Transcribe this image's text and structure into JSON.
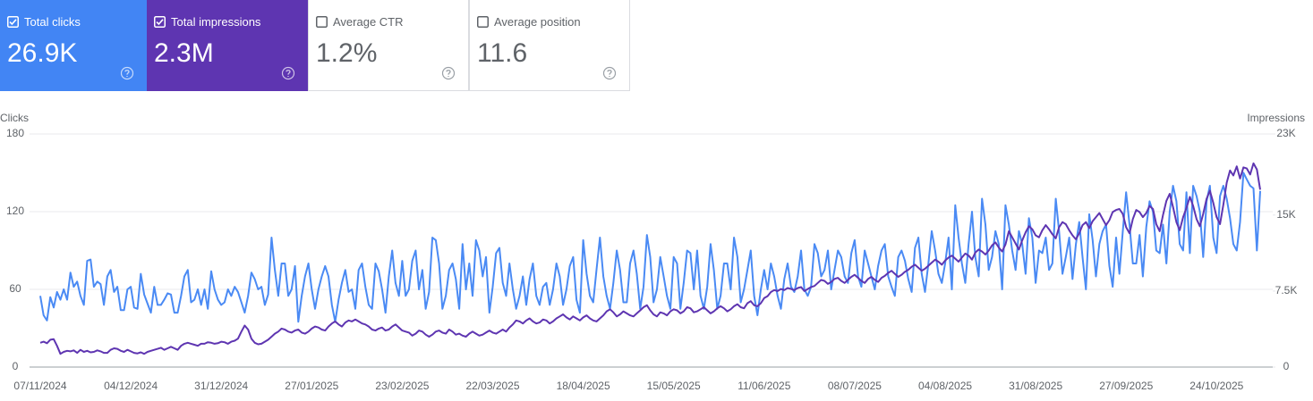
{
  "metrics": [
    {
      "label": "Total clicks",
      "value": "26.9K",
      "checked": true,
      "color": "#4285f4"
    },
    {
      "label": "Total impressions",
      "value": "2.3M",
      "checked": true,
      "color": "#5e35b1"
    },
    {
      "label": "Average CTR",
      "value": "1.2%",
      "checked": false,
      "color": "#ffffff"
    },
    {
      "label": "Average position",
      "value": "11.6",
      "checked": false,
      "color": "#ffffff"
    }
  ],
  "chart_data": {
    "type": "line",
    "ylabel": "Clicks",
    "y2label": "Impressions",
    "ylim": [
      0,
      180
    ],
    "yticks": [
      0,
      60,
      120,
      180
    ],
    "y2lim": [
      0,
      23000
    ],
    "y2ticks": [
      0,
      {
        "value": 7500,
        "label": "7.5K"
      },
      {
        "value": 15000,
        "label": "15K"
      },
      {
        "value": 23000,
        "label": "23K"
      }
    ],
    "grid": true,
    "categories": [
      "07/11/2024",
      null,
      null,
      null,
      null,
      null,
      null,
      null,
      null,
      null,
      null,
      null,
      null,
      null,
      null,
      null,
      null,
      null,
      null,
      null,
      null,
      null,
      null,
      null,
      null,
      null,
      null,
      "04/12/2024",
      null,
      null,
      null,
      null,
      null,
      null,
      null,
      null,
      null,
      null,
      null,
      null,
      null,
      null,
      null,
      null,
      null,
      null,
      null,
      null,
      null,
      null,
      null,
      null,
      null,
      null,
      "31/12/2024",
      null,
      null,
      null,
      null,
      null,
      null,
      null,
      null,
      null,
      null,
      null,
      null,
      null,
      null,
      null,
      null,
      null,
      null,
      null,
      null,
      null,
      null,
      null,
      null,
      null,
      null,
      "27/01/2025",
      null,
      null,
      null,
      null,
      null,
      null,
      null,
      null,
      null,
      null,
      null,
      null,
      null,
      null,
      null,
      null,
      null,
      null,
      null,
      null,
      null,
      null,
      null,
      null,
      null,
      null,
      "23/02/2025",
      null,
      null,
      null,
      null,
      null,
      null,
      null,
      null,
      null,
      null,
      null,
      null,
      null,
      null,
      null,
      null,
      null,
      null,
      null,
      null,
      null,
      null,
      null,
      null,
      null,
      null,
      "22/03/2025",
      null,
      null,
      null,
      null,
      null,
      null,
      null,
      null,
      null,
      null,
      null,
      null,
      null,
      null,
      null,
      null,
      null,
      null,
      null,
      null,
      null,
      null,
      null,
      null,
      null,
      null,
      "18/04/2025",
      null,
      null,
      null,
      null,
      null,
      null,
      null,
      null,
      null,
      null,
      null,
      null,
      null,
      null,
      null,
      null,
      null,
      null,
      null,
      null,
      null,
      null,
      null,
      null,
      null,
      null,
      "15/05/2025",
      null,
      null,
      null,
      null,
      null,
      null,
      null,
      null,
      null,
      null,
      null,
      null,
      null,
      null,
      null,
      null,
      null,
      null,
      null,
      null,
      null,
      null,
      null,
      null,
      null,
      null,
      "11/06/2025",
      null,
      null,
      null,
      null,
      null,
      null,
      null,
      null,
      null,
      null,
      null,
      null,
      null,
      null,
      null,
      null,
      null,
      null,
      null,
      null,
      null,
      null,
      null,
      null,
      null,
      null,
      "08/07/2025",
      null,
      null,
      null,
      null,
      null,
      null,
      null,
      null,
      null,
      null,
      null,
      null,
      null,
      null,
      null,
      null,
      null,
      null,
      null,
      null,
      null,
      null,
      null,
      null,
      null,
      null,
      "04/08/2025",
      null,
      null,
      null,
      null,
      null,
      null,
      null,
      null,
      null,
      null,
      null,
      null,
      null,
      null,
      null,
      null,
      null,
      null,
      null,
      null,
      null,
      null,
      null,
      null,
      null,
      null,
      "31/08/2025",
      null,
      null,
      null,
      null,
      null,
      null,
      null,
      null,
      null,
      null,
      null,
      null,
      null,
      null,
      null,
      null,
      null,
      null,
      null,
      null,
      null,
      null,
      null,
      null,
      null,
      null,
      "27/09/2025",
      null,
      null,
      null,
      null,
      null,
      null,
      null,
      null,
      null,
      null,
      null,
      null,
      null,
      null,
      null,
      null,
      null,
      null,
      null,
      null,
      null,
      null,
      null,
      null,
      null,
      null,
      "24/10/2025",
      null,
      null,
      null,
      null,
      null,
      null,
      null,
      null,
      null,
      null,
      null,
      null,
      null
    ],
    "series": [
      {
        "color": "#4a8af4",
        "axis": "y",
        "values": [
          55,
          40,
          36,
          54,
          46,
          58,
          52,
          60,
          52,
          73,
          62,
          66,
          55,
          48,
          82,
          83,
          62,
          66,
          64,
          48,
          70,
          75,
          58,
          62,
          44,
          44,
          60,
          62,
          46,
          45,
          72,
          56,
          49,
          42,
          62,
          48,
          48,
          52,
          57,
          56,
          42,
          42,
          55,
          70,
          75,
          50,
          52,
          60,
          48,
          60,
          45,
          74,
          60,
          52,
          48,
          50,
          60,
          55,
          62,
          58,
          50,
          42,
          55,
          73,
          68,
          60,
          62,
          48,
          56,
          100,
          75,
          55,
          80,
          80,
          55,
          60,
          78,
          35,
          55,
          70,
          80,
          60,
          45,
          60,
          70,
          78,
          70,
          48,
          35,
          52,
          65,
          75,
          58,
          60,
          45,
          75,
          80,
          62,
          48,
          45,
          80,
          74,
          60,
          42,
          70,
          90,
          65,
          55,
          82,
          55,
          60,
          82,
          90,
          60,
          75,
          45,
          58,
          100,
          98,
          80,
          45,
          55,
          75,
          80,
          68,
          45,
          95,
          60,
          80,
          55,
          98,
          90,
          70,
          85,
          42,
          62,
          88,
          92,
          65,
          55,
          80,
          60,
          45,
          55,
          70,
          48,
          68,
          80,
          55,
          48,
          62,
          65,
          48,
          60,
          80,
          70,
          48,
          60,
          78,
          85,
          52,
          42,
          98,
          72,
          55,
          50,
          76,
          100,
          70,
          55,
          45,
          65,
          90,
          75,
          50,
          50,
          80,
          90,
          72,
          45,
          62,
          102,
          85,
          50,
          60,
          85,
          70,
          55,
          45,
          85,
          80,
          45,
          65,
          90,
          88,
          60,
          90,
          55,
          45,
          62,
          95,
          75,
          45,
          55,
          80,
          80,
          60,
          100,
          85,
          50,
          60,
          75,
          90,
          55,
          40,
          60,
          75,
          60,
          80,
          70,
          55,
          45,
          68,
          80,
          62,
          58,
          70,
          90,
          60,
          55,
          62,
          95,
          88,
          70,
          75,
          90,
          60,
          75,
          90,
          85,
          70,
          65,
          88,
          98,
          70,
          62,
          90,
          80,
          70,
          60,
          78,
          90,
          95,
          70,
          62,
          55,
          85,
          90,
          82,
          68,
          58,
          92,
          100,
          72,
          58,
          80,
          105,
          90,
          72,
          65,
          80,
          100,
          60,
          125,
          100,
          80,
          65,
          95,
          120,
          85,
          70,
          130,
          110,
          75,
          85,
          105,
          95,
          60,
          125,
          110,
          90,
          75,
          105,
          95,
          72,
          115,
          100,
          65,
          90,
          88,
          100,
          75,
          80,
          130,
          105,
          72,
          85,
          100,
          68,
          95,
          112,
          85,
          60,
          118,
          98,
          70,
          95,
          105,
          110,
          78,
          62,
          100,
          72,
          105,
          135,
          110,
          80,
          80,
          102,
          70,
          108,
          128,
          120,
          90,
          88,
          110,
          80,
          120,
          140,
          128,
          95,
          90,
          135,
          88,
          140,
          132,
          120,
          85,
          128,
          140,
          100,
          88,
          132,
          140,
          130,
          115,
          95,
          90,
          112,
          150,
          145,
          140,
          138,
          90,
          136
        ]
      },
      {
        "color": "#5e35b1",
        "axis": "y2",
        "values": [
          2400,
          2500,
          2350,
          2700,
          2750,
          2100,
          1300,
          1500,
          1600,
          1550,
          1650,
          1400,
          1700,
          1500,
          1600,
          1450,
          1500,
          1650,
          1550,
          1400,
          1400,
          1700,
          1850,
          1800,
          1600,
          1500,
          1700,
          1550,
          1400,
          1350,
          1450,
          1300,
          1500,
          1600,
          1700,
          1800,
          1900,
          1700,
          1850,
          2000,
          1850,
          1700,
          2100,
          2300,
          2400,
          2300,
          2200,
          2100,
          2300,
          2300,
          2450,
          2400,
          2300,
          2350,
          2500,
          2450,
          2300,
          2500,
          2600,
          2800,
          3500,
          4100,
          3700,
          2800,
          2400,
          2250,
          2300,
          2500,
          2700,
          3000,
          3300,
          3500,
          3800,
          3700,
          3500,
          3400,
          3600,
          3700,
          3400,
          3300,
          3500,
          3800,
          4000,
          3900,
          3700,
          3600,
          4000,
          4300,
          4500,
          4200,
          4000,
          4400,
          4600,
          4500,
          4700,
          4500,
          4300,
          4200,
          4000,
          3700,
          3600,
          3800,
          3900,
          3600,
          3700,
          4000,
          4200,
          3900,
          3600,
          3500,
          3400,
          3100,
          3300,
          3600,
          3500,
          3200,
          3000,
          3200,
          3500,
          3600,
          3400,
          3300,
          3700,
          3500,
          3200,
          3300,
          3100,
          3000,
          3300,
          3500,
          3300,
          3100,
          3200,
          3400,
          3600,
          3400,
          3300,
          3500,
          3700,
          3500,
          3900,
          4200,
          4600,
          4500,
          4300,
          4600,
          4800,
          4500,
          4300,
          4400,
          4700,
          4600,
          4300,
          4500,
          4800,
          5000,
          5200,
          4900,
          4700,
          5000,
          4800,
          4600,
          4900,
          5100,
          4800,
          4600,
          4500,
          4800,
          5100,
          5500,
          5700,
          5400,
          5000,
          5200,
          5500,
          5300,
          5100,
          5000,
          5300,
          5600,
          5900,
          6100,
          5600,
          5200,
          5000,
          5400,
          5300,
          5100,
          5500,
          5700,
          5600,
          5300,
          5500,
          5900,
          5800,
          5400,
          5500,
          5700,
          5900,
          5600,
          5300,
          5500,
          5800,
          6000,
          5800,
          5500,
          5700,
          6000,
          6200,
          5900,
          5800,
          6300,
          6500,
          6100,
          6000,
          6300,
          6800,
          7000,
          7400,
          7600,
          7500,
          7700,
          7600,
          7800,
          7700,
          7600,
          7800,
          7900,
          7500,
          7700,
          7900,
          8000,
          8300,
          8600,
          8500,
          8200,
          8400,
          8700,
          8800,
          8500,
          8300,
          8600,
          8900,
          9100,
          8800,
          8500,
          8300,
          8700,
          8900,
          8600,
          8400,
          8800,
          9000,
          9300,
          9500,
          9200,
          8900,
          9100,
          9400,
          9600,
          9900,
          10100,
          9800,
          9500,
          9700,
          10000,
          10300,
          10600,
          10400,
          10100,
          10500,
          10800,
          11000,
          10700,
          10400,
          10800,
          11200,
          11000,
          10600,
          11300,
          11600,
          11400,
          11100,
          11500,
          12000,
          12300,
          11800,
          11400,
          12100,
          13400,
          12800,
          12200,
          11600,
          12500,
          13300,
          13900,
          13600,
          13000,
          12800,
          13500,
          14000,
          13600,
          13100,
          12700,
          13800,
          14300,
          14100,
          13500,
          13000,
          12600,
          13200,
          14000,
          14300,
          13700,
          14400,
          14800,
          15200,
          14600,
          14000,
          14500,
          15300,
          15500,
          15600,
          15100,
          13800,
          13200,
          14600,
          15500,
          15300,
          14800,
          15200,
          15900,
          15600,
          14100,
          13400,
          15000,
          16400,
          17100,
          15800,
          14300,
          13500,
          14800,
          15700,
          16800,
          15900,
          14600,
          13900,
          15100,
          16600,
          17400,
          16200,
          14800,
          14100,
          16000,
          18200,
          19400,
          18900,
          19800,
          18600,
          19700,
          19600,
          19000,
          20100,
          19500,
          17500
        ]
      }
    ]
  }
}
